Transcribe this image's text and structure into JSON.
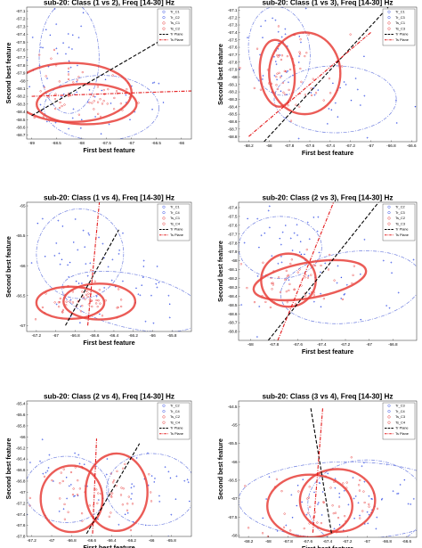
{
  "figure": {
    "xlabel": "First best feature",
    "ylabel": "Second best feature"
  },
  "legend_entries": {
    "c1": "Tr_C1",
    "c2": "Tr_C2",
    "c3": "Tr_C3",
    "c4": "Tr_C4",
    "ts1": "Ts_C1",
    "ts2": "Ts_C2",
    "ts3": "Ts_C3",
    "ts4": "Ts_C4",
    "tr_plane": "Tr Plane",
    "ts_plane": "Ts Plane"
  },
  "colors": {
    "train_blue": "#3c55e6",
    "test_red": "#e83a3a",
    "ellipse_red": "#e8403a",
    "tr_plane": "#000000",
    "ts_plane": "#e31a1c"
  },
  "chart_data": [
    {
      "type": "scatter",
      "title": "sub-20: Class (1 vs 2), Freq [14-30] Hz",
      "xlabel": "First best feature",
      "ylabel": "Second best feature",
      "xlim": [
        -69.1,
        -65.8
      ],
      "ylim": [
        -68.75,
        -67.05
      ],
      "xticks": [
        "-69",
        "-68.5",
        "-68",
        "-67.5",
        "-67",
        "-66.5",
        "-66"
      ],
      "xtick_values": [
        -69,
        -68.5,
        -68,
        -67.5,
        -67,
        -66.5,
        -66
      ],
      "yticks": [
        "-67.1",
        "-67.2",
        "-67.3",
        "-67.4",
        "-67.5",
        "-67.6",
        "-67.7",
        "-67.8",
        "-67.9",
        "-68",
        "-68.1",
        "-68.2",
        "-68.3",
        "-68.4",
        "-68.5",
        "-68.6",
        "-68.7"
      ],
      "ytick_values": [
        -67.1,
        -67.2,
        -67.3,
        -67.4,
        -67.5,
        -67.6,
        -67.7,
        -67.8,
        -67.9,
        -68,
        -68.1,
        -68.2,
        -68.3,
        -68.4,
        -68.5,
        -68.6,
        -68.7
      ],
      "legend": [
        "c1",
        "c2",
        "ts1",
        "ts2",
        "tr_plane",
        "ts_plane"
      ],
      "legend_position": "top-right",
      "train_ellipses": [
        {
          "cx": -68.25,
          "cy": -67.7,
          "rx": 0.6,
          "ry": 0.72,
          "angle": 0
        },
        {
          "cx": -67.6,
          "cy": -68.35,
          "rx": 1.15,
          "ry": 0.42,
          "angle": 0
        }
      ],
      "test_ellipses": [
        {
          "cx": -68.2,
          "cy": -68.15,
          "rx": 1.2,
          "ry": 0.38,
          "angle": 0
        },
        {
          "cx": -67.9,
          "cy": -68.3,
          "rx": 1.0,
          "ry": 0.26,
          "angle": 0
        }
      ],
      "tr_plane": [
        [
          -69.0,
          -68.45
        ],
        [
          -66.2,
          -67.4
        ]
      ],
      "ts_plane": [
        [
          -69.0,
          -68.2
        ],
        [
          -65.8,
          -68.13
        ]
      ],
      "point_clouds": [
        {
          "cls": 1,
          "cx": -68.4,
          "cy": -67.7,
          "sx": 0.35,
          "sy": 0.45,
          "n": 40
        },
        {
          "cls": 2,
          "cx": -67.6,
          "cy": -68.35,
          "sx": 0.7,
          "sy": 0.22,
          "n": 30
        },
        {
          "cls": 1,
          "cx": -68.2,
          "cy": -68.1,
          "sx": 0.55,
          "sy": 0.2,
          "n": 30,
          "test": true
        },
        {
          "cls": 2,
          "cx": -67.9,
          "cy": -68.25,
          "sx": 0.55,
          "sy": 0.15,
          "n": 30,
          "test": true
        }
      ]
    },
    {
      "type": "scatter",
      "title": "sub-20: Class (1 vs 3), Freq [14-30] Hz",
      "xlabel": "First best feature",
      "ylabel": "Second best feature",
      "xlim": [
        -68.3,
        -66.55
      ],
      "ylim": [
        -68.87,
        -67.06
      ],
      "xticks": [
        "-68.2",
        "-68",
        "-67.8",
        "-67.6",
        "-67.4",
        "-67.2",
        "-67",
        "-66.8",
        "-66.6"
      ],
      "xtick_values": [
        -68.2,
        -68,
        -67.8,
        -67.6,
        -67.4,
        -67.2,
        -67,
        -66.8,
        -66.6
      ],
      "yticks": [
        "-67.1",
        "-67.2",
        "-67.3",
        "-67.4",
        "-67.5",
        "-67.6",
        "-67.7",
        "-67.8",
        "-67.9",
        "-68",
        "-68.1",
        "-68.2",
        "-68.3",
        "-68.4",
        "-68.5",
        "-68.6",
        "-68.7",
        "-68.8"
      ],
      "ytick_values": [
        -67.1,
        -67.2,
        -67.3,
        -67.4,
        -67.5,
        -67.6,
        -67.7,
        -67.8,
        -67.9,
        -68,
        -68.1,
        -68.2,
        -68.3,
        -68.4,
        -68.5,
        -68.6,
        -68.7,
        -68.8
      ],
      "legend": [
        "c1",
        "c3",
        "ts1",
        "ts3",
        "tr_plane",
        "ts_plane"
      ],
      "legend_position": "top-right",
      "train_ellipses": [
        {
          "cx": -67.9,
          "cy": -67.65,
          "rx": 0.3,
          "ry": 0.6,
          "angle": -8
        },
        {
          "cx": -67.35,
          "cy": -68.3,
          "rx": 0.6,
          "ry": 0.45,
          "angle": 0
        }
      ],
      "test_ellipses": [
        {
          "cx": -67.92,
          "cy": -67.95,
          "rx": 0.17,
          "ry": 0.45,
          "angle": -5
        },
        {
          "cx": -67.65,
          "cy": -67.95,
          "rx": 0.35,
          "ry": 0.55,
          "angle": 0
        }
      ],
      "tr_plane": [
        [
          -68.05,
          -68.87
        ],
        [
          -66.83,
          -67.06
        ]
      ],
      "ts_plane": [
        [
          -68.2,
          -68.8
        ],
        [
          -67.0,
          -67.4
        ]
      ],
      "point_clouds": [
        {
          "cls": 1,
          "cx": -67.9,
          "cy": -67.6,
          "sx": 0.18,
          "sy": 0.35,
          "n": 40
        },
        {
          "cls": 3,
          "cx": -67.35,
          "cy": -68.3,
          "sx": 0.35,
          "sy": 0.25,
          "n": 30
        },
        {
          "cls": 1,
          "cx": -67.9,
          "cy": -67.95,
          "sx": 0.12,
          "sy": 0.28,
          "n": 28,
          "test": true
        },
        {
          "cls": 3,
          "cx": -67.65,
          "cy": -67.95,
          "sx": 0.22,
          "sy": 0.3,
          "n": 28,
          "test": true
        }
      ]
    },
    {
      "type": "scatter",
      "title": "sub-20: Class (1 vs 4), Freq [14-30] Hz",
      "xlabel": "First best feature",
      "ylabel": "Second best feature",
      "xlim": [
        -67.3,
        -65.6
      ],
      "ylim": [
        -67.1,
        -64.94
      ],
      "xticks": [
        "-67.2",
        "-67",
        "-66.8",
        "-66.6",
        "-66.4",
        "-66.2",
        "-66",
        "-65.8"
      ],
      "xtick_values": [
        -67.2,
        -67,
        -66.8,
        -66.6,
        -66.4,
        -66.2,
        -66,
        -65.8
      ],
      "yticks": [
        "-65",
        "-65.5",
        "-66",
        "-66.5",
        "-67"
      ],
      "ytick_values": [
        -65,
        -65.5,
        -66,
        -66.5,
        -67
      ],
      "legend": [
        "c1",
        "c4",
        "ts1",
        "ts4",
        "tr_plane",
        "ts_plane"
      ],
      "legend_position": "top-right",
      "train_ellipses": [
        {
          "cx": -66.75,
          "cy": -65.8,
          "rx": 0.45,
          "ry": 0.75,
          "angle": 0
        },
        {
          "cx": -66.2,
          "cy": -66.6,
          "rx": 0.75,
          "ry": 0.45,
          "angle": 12
        }
      ],
      "test_ellipses": [
        {
          "cx": -66.85,
          "cy": -66.62,
          "rx": 0.35,
          "ry": 0.27,
          "angle": 0
        },
        {
          "cx": -66.55,
          "cy": -66.6,
          "rx": 0.37,
          "ry": 0.3,
          "angle": 0
        }
      ],
      "tr_plane": [
        [
          -66.9,
          -67.0
        ],
        [
          -66.35,
          -65.4
        ]
      ],
      "ts_plane": [
        [
          -66.67,
          -67.0
        ],
        [
          -66.55,
          -64.94
        ]
      ],
      "point_clouds": [
        {
          "cls": 1,
          "cx": -66.75,
          "cy": -65.8,
          "sx": 0.25,
          "sy": 0.4,
          "n": 40
        },
        {
          "cls": 4,
          "cx": -66.2,
          "cy": -66.5,
          "sx": 0.4,
          "sy": 0.25,
          "n": 30
        },
        {
          "cls": 1,
          "cx": -66.85,
          "cy": -66.6,
          "sx": 0.18,
          "sy": 0.16,
          "n": 28,
          "test": true
        },
        {
          "cls": 4,
          "cx": -66.55,
          "cy": -66.6,
          "sx": 0.2,
          "sy": 0.16,
          "n": 28,
          "test": true
        }
      ]
    },
    {
      "type": "scatter",
      "title": "sub-20: Class (2 vs 3), Freq [14-30] Hz",
      "xlabel": "First best feature",
      "ylabel": "Second best feature",
      "xlim": [
        -68.1,
        -66.6
      ],
      "ylim": [
        -68.9,
        -67.34
      ],
      "xticks": [
        "-68",
        "-67.8",
        "-67.6",
        "-67.4",
        "-67.2",
        "-67",
        "-66.8"
      ],
      "xtick_values": [
        -68,
        -67.8,
        -67.6,
        -67.4,
        -67.2,
        -67,
        -66.8
      ],
      "yticks": [
        "-67.4",
        "-67.5",
        "-67.6",
        "-67.7",
        "-67.8",
        "-67.9",
        "-68",
        "-68.1",
        "-68.2",
        "-68.3",
        "-68.4",
        "-68.5",
        "-68.6",
        "-68.7",
        "-68.8"
      ],
      "ytick_values": [
        -67.4,
        -67.5,
        -67.6,
        -67.7,
        -67.8,
        -67.9,
        -68,
        -68.1,
        -68.2,
        -68.3,
        -68.4,
        -68.5,
        -68.6,
        -68.7,
        -68.8
      ],
      "legend": [
        "c2",
        "c3",
        "ts2",
        "ts3",
        "tr_plane",
        "ts_plane"
      ],
      "legend_position": "top-right",
      "train_ellipses": [
        {
          "cx": -67.75,
          "cy": -67.85,
          "rx": 0.35,
          "ry": 0.35,
          "angle": 0
        },
        {
          "cx": -67.15,
          "cy": -68.3,
          "rx": 0.6,
          "ry": 0.4,
          "angle": -8
        }
      ],
      "test_ellipses": [
        {
          "cx": -67.68,
          "cy": -68.22,
          "rx": 0.23,
          "ry": 0.3,
          "angle": 0
        },
        {
          "cx": -67.5,
          "cy": -68.22,
          "rx": 0.48,
          "ry": 0.2,
          "angle": -10
        }
      ],
      "tr_plane": [
        [
          -67.85,
          -68.9
        ],
        [
          -66.92,
          -67.34
        ]
      ],
      "ts_plane": [
        [
          -67.77,
          -68.9
        ],
        [
          -67.3,
          -67.34
        ]
      ],
      "point_clouds": [
        {
          "cls": 2,
          "cx": -67.75,
          "cy": -67.85,
          "sx": 0.2,
          "sy": 0.22,
          "n": 35
        },
        {
          "cls": 3,
          "cx": -67.15,
          "cy": -68.3,
          "sx": 0.35,
          "sy": 0.22,
          "n": 30
        },
        {
          "cls": 2,
          "cx": -67.68,
          "cy": -68.22,
          "sx": 0.14,
          "sy": 0.18,
          "n": 28,
          "test": true
        },
        {
          "cls": 3,
          "cx": -67.5,
          "cy": -68.22,
          "sx": 0.28,
          "sy": 0.12,
          "n": 28,
          "test": true
        }
      ]
    },
    {
      "type": "scatter",
      "title": "sub-20: Class (2 vs 4), Freq [14-30] Hz",
      "xlabel": "First best feature",
      "ylabel": "Second best feature",
      "xlim": [
        -67.25,
        -65.6
      ],
      "ylim": [
        -67.8,
        -65.35
      ],
      "xticks": [
        "-67.2",
        "-67",
        "-66.8",
        "-66.6",
        "-66.4",
        "-66.2",
        "-66",
        "-65.8"
      ],
      "xtick_values": [
        -67.2,
        -67,
        -66.8,
        -66.6,
        -66.4,
        -66.2,
        -66,
        -65.8
      ],
      "yticks": [
        "-65.4",
        "-65.6",
        "-65.8",
        "-66",
        "-66.2",
        "-66.4",
        "-66.6",
        "-66.8",
        "-67",
        "-67.2",
        "-67.4",
        "-67.6",
        "-67.8"
      ],
      "ytick_values": [
        -65.4,
        -65.6,
        -65.8,
        -66,
        -66.2,
        -66.4,
        -66.6,
        -66.8,
        -67,
        -67.2,
        -67.4,
        -67.6,
        -67.8
      ],
      "legend": [
        "c2",
        "c4",
        "ts2",
        "ts4",
        "tr_plane",
        "ts_plane"
      ],
      "legend_position": "top-right",
      "train_ellipses": [
        {
          "cx": -66.85,
          "cy": -66.95,
          "rx": 0.42,
          "ry": 0.6,
          "angle": 0
        },
        {
          "cx": -66.0,
          "cy": -66.95,
          "rx": 0.45,
          "ry": 0.65,
          "angle": 0
        }
      ],
      "test_ellipses": [
        {
          "cx": -66.8,
          "cy": -67.12,
          "rx": 0.31,
          "ry": 0.6,
          "angle": 0
        },
        {
          "cx": -66.35,
          "cy": -67.0,
          "rx": 0.31,
          "ry": 0.7,
          "angle": 0
        }
      ],
      "tr_plane": [
        [
          -66.65,
          -67.75
        ],
        [
          -66.12,
          -66.12
        ]
      ],
      "ts_plane": [
        [
          -66.59,
          -67.75
        ],
        [
          -66.55,
          -66.03
        ]
      ],
      "point_clouds": [
        {
          "cls": 2,
          "cx": -66.85,
          "cy": -66.9,
          "sx": 0.28,
          "sy": 0.38,
          "n": 35
        },
        {
          "cls": 4,
          "cx": -66.0,
          "cy": -66.95,
          "sx": 0.28,
          "sy": 0.38,
          "n": 35
        },
        {
          "cls": 2,
          "cx": -66.8,
          "cy": -67.12,
          "sx": 0.2,
          "sy": 0.35,
          "n": 28,
          "test": true
        },
        {
          "cls": 4,
          "cx": -66.35,
          "cy": -67.0,
          "sx": 0.2,
          "sy": 0.38,
          "n": 28,
          "test": true
        }
      ]
    },
    {
      "type": "scatter",
      "title": "sub-20: Class (3 vs 4), Freq [14-30] Hz",
      "xlabel": "First best feature",
      "ylabel": "Second best feature",
      "xlim": [
        -68.3,
        -66.5
      ],
      "ylim": [
        -68.05,
        -64.35
      ],
      "xticks": [
        "-68.2",
        "-68",
        "-67.8",
        "-67.6",
        "-67.4",
        "-67.2",
        "-67",
        "-66.8",
        "-66.6"
      ],
      "xtick_values": [
        -68.2,
        -68,
        -67.8,
        -67.6,
        -67.4,
        -67.2,
        -67,
        -66.8,
        -66.6
      ],
      "yticks": [
        "-64.5",
        "-65",
        "-65.5",
        "-66",
        "-66.5",
        "-67",
        "-67.5",
        "-68"
      ],
      "ytick_values": [
        -64.5,
        -65,
        -65.5,
        -66,
        -66.5,
        -67,
        -67.5,
        -68
      ],
      "legend": [
        "c3",
        "c4",
        "ts3",
        "ts4",
        "tr_plane",
        "ts_plane"
      ],
      "legend_position": "top-right",
      "train_ellipses": [
        {
          "cx": -67.2,
          "cy": -67.05,
          "rx": 1.1,
          "ry": 1.05,
          "angle": 0
        },
        {
          "cx": -67.0,
          "cy": -67.15,
          "rx": 0.6,
          "ry": 1.2,
          "angle": 0
        }
      ],
      "test_ellipses": [
        {
          "cx": -67.58,
          "cy": -67.2,
          "rx": 0.43,
          "ry": 0.85,
          "angle": 0
        },
        {
          "cx": -67.3,
          "cy": -67.05,
          "rx": 0.38,
          "ry": 0.85,
          "angle": 0
        }
      ],
      "tr_plane": [
        [
          -67.57,
          -64.55
        ],
        [
          -67.36,
          -67.95
        ]
      ],
      "ts_plane": [
        [
          -67.45,
          -64.55
        ],
        [
          -67.55,
          -67.95
        ]
      ],
      "point_clouds": [
        {
          "cls": 3,
          "cx": -67.2,
          "cy": -67.0,
          "sx": 0.5,
          "sy": 0.55,
          "n": 40
        },
        {
          "cls": 4,
          "cx": -67.0,
          "cy": -67.15,
          "sx": 0.35,
          "sy": 0.6,
          "n": 30
        },
        {
          "cls": 3,
          "cx": -67.58,
          "cy": -67.2,
          "sx": 0.25,
          "sy": 0.5,
          "n": 28,
          "test": true
        },
        {
          "cls": 4,
          "cx": -67.3,
          "cy": -67.05,
          "sx": 0.22,
          "sy": 0.5,
          "n": 28,
          "test": true
        }
      ]
    }
  ]
}
